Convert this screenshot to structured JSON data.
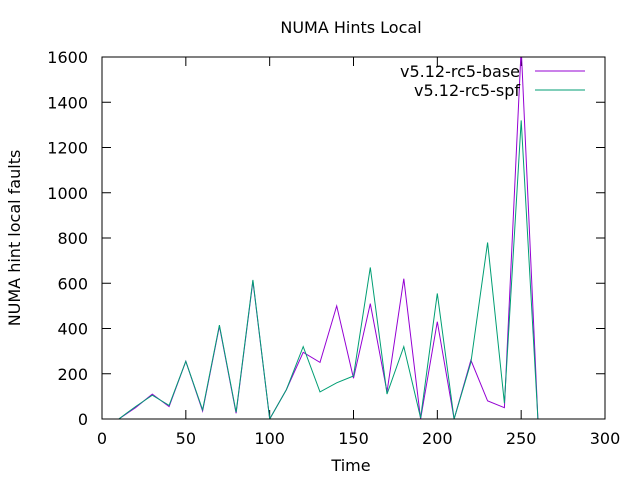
{
  "chart_data": {
    "type": "line",
    "title": "NUMA Hints Local",
    "xlabel": "Time",
    "ylabel": "NUMA hint local faults",
    "xlim": [
      0,
      300
    ],
    "ylim": [
      0,
      1600
    ],
    "xticks": [
      0,
      50,
      100,
      150,
      200,
      250,
      300
    ],
    "yticks": [
      0,
      200,
      400,
      600,
      800,
      1000,
      1200,
      1400,
      1600
    ],
    "grid": false,
    "legend_position": "top-right",
    "series": [
      {
        "name": "v5.12-rc5-base",
        "color": "#9400d3",
        "x": [
          10,
          20,
          30,
          40,
          50,
          60,
          70,
          80,
          90,
          100,
          110,
          120,
          130,
          140,
          150,
          160,
          170,
          180,
          190,
          200,
          210,
          220,
          230,
          240,
          250,
          260
        ],
        "y": [
          0,
          50,
          110,
          55,
          255,
          35,
          410,
          25,
          610,
          0,
          130,
          295,
          250,
          500,
          180,
          510,
          120,
          620,
          0,
          430,
          0,
          260,
          80,
          50,
          1640,
          0
        ]
      },
      {
        "name": "v5.12-rc5-spf",
        "color": "#009e73",
        "x": [
          10,
          20,
          30,
          40,
          50,
          60,
          70,
          80,
          90,
          100,
          110,
          120,
          130,
          140,
          150,
          160,
          170,
          180,
          190,
          200,
          210,
          220,
          230,
          240,
          250,
          260
        ],
        "y": [
          0,
          55,
          105,
          60,
          255,
          40,
          415,
          30,
          615,
          0,
          130,
          320,
          120,
          160,
          190,
          670,
          110,
          320,
          5,
          555,
          0,
          250,
          780,
          70,
          1320,
          0
        ]
      }
    ]
  }
}
